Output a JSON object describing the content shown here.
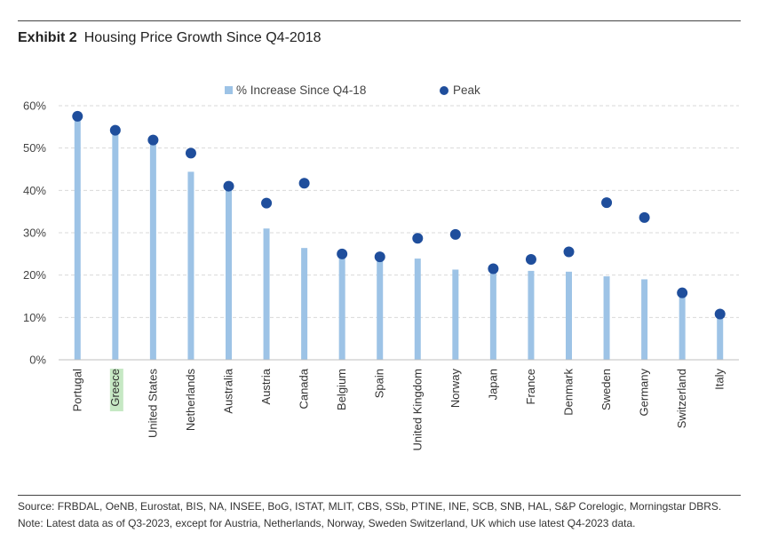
{
  "header": {
    "exhibit": "Exhibit 2",
    "title": "Housing Price Growth Since Q4-2018"
  },
  "chart_data": {
    "type": "bar",
    "title": "Housing Price Growth Since Q4-2018",
    "xlabel": "",
    "ylabel": "",
    "ylim": [
      0,
      60
    ],
    "yticks": [
      0,
      10,
      20,
      30,
      40,
      50,
      60
    ],
    "ytick_labels": [
      "0%",
      "10%",
      "20%",
      "30%",
      "40%",
      "50%",
      "60%"
    ],
    "grid": true,
    "legend_position": "top",
    "categories": [
      "Portugal",
      "Greece",
      "United States",
      "Netherlands",
      "Australia",
      "Austria",
      "Canada",
      "Belgium",
      "Spain",
      "United Kingdom",
      "Norway",
      "Japan",
      "France",
      "Denmark",
      "Sweden",
      "Germany",
      "Switzerland",
      "Italy"
    ],
    "highlighted_category": "Greece",
    "series": [
      {
        "name": "% Increase Since Q4-18",
        "kind": "bar",
        "color": "#9dc3e6",
        "values": [
          57.5,
          54.2,
          51.9,
          44.4,
          41.0,
          31.0,
          26.4,
          24.6,
          24.3,
          23.9,
          21.3,
          21.5,
          21.0,
          20.8,
          19.7,
          19.0,
          15.8,
          10.8
        ]
      },
      {
        "name": "Peak",
        "kind": "scatter",
        "color": "#1f4e9c",
        "values": [
          57.5,
          54.2,
          51.9,
          48.8,
          41.0,
          37.0,
          41.7,
          25.0,
          24.3,
          28.7,
          29.6,
          21.5,
          23.7,
          25.5,
          37.1,
          33.6,
          15.8,
          10.8
        ]
      }
    ]
  },
  "footer": {
    "source": "Source: FRBDAL, OeNB, Eurostat, BIS, NA, INSEE, BoG, ISTAT, MLIT, CBS, SSb, PTINE, INE, SCB, SNB, HAL, S&P Corelogic, Morningstar DBRS.",
    "note": "Note: Latest data as of Q3-2023, except for Austria, Netherlands, Norway, Sweden Switzerland, UK which use latest Q4-2023 data."
  },
  "colors": {
    "bar": "#9dc3e6",
    "peak": "#1f4e9c",
    "highlight": "#c6e8c4",
    "grid": "#d9d9d9"
  }
}
